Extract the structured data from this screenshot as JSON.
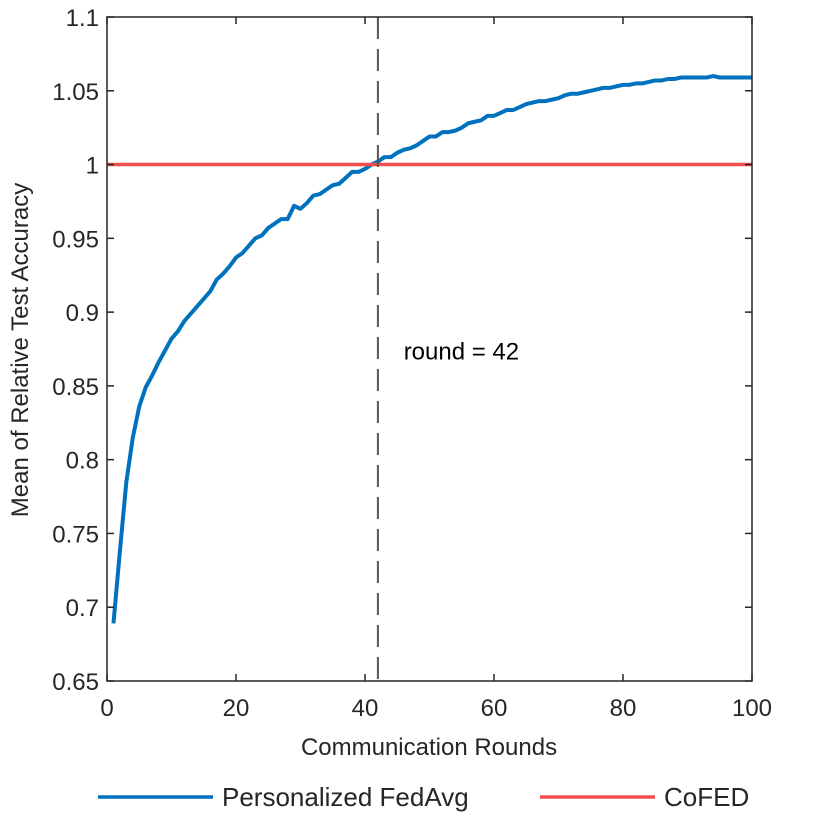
{
  "chart_data": {
    "type": "line",
    "xlabel": "Communication Rounds",
    "ylabel": "Mean of Relative Test Accuracy",
    "xlim": [
      0,
      100
    ],
    "ylim": [
      0.65,
      1.1
    ],
    "xticks": [
      0,
      20,
      40,
      60,
      80,
      100
    ],
    "yticks": [
      0.65,
      0.7,
      0.75,
      0.8,
      0.85,
      0.9,
      0.95,
      1,
      1.05,
      1.1
    ],
    "xtick_labels": [
      "0",
      "20",
      "40",
      "60",
      "80",
      "100"
    ],
    "ytick_labels": [
      "0.65",
      "0.7",
      "0.75",
      "0.8",
      "0.85",
      "0.9",
      "0.95",
      "1",
      "1.05",
      "1.1"
    ],
    "grid": false,
    "legend_position": "bottom",
    "series": [
      {
        "name": "Personalized FedAvg",
        "color": "#0072BD",
        "x": [
          1,
          2,
          3,
          4,
          5,
          6,
          7,
          8,
          9,
          10,
          11,
          12,
          13,
          14,
          15,
          16,
          17,
          18,
          19,
          20,
          21,
          22,
          23,
          24,
          25,
          26,
          27,
          28,
          29,
          30,
          31,
          32,
          33,
          34,
          35,
          36,
          37,
          38,
          39,
          40,
          41,
          42,
          43,
          44,
          45,
          46,
          47,
          48,
          49,
          50,
          51,
          52,
          53,
          54,
          55,
          56,
          57,
          58,
          59,
          60,
          61,
          62,
          63,
          64,
          65,
          66,
          67,
          68,
          69,
          70,
          71,
          72,
          73,
          74,
          75,
          76,
          77,
          78,
          79,
          80,
          81,
          82,
          83,
          84,
          85,
          86,
          87,
          88,
          89,
          90,
          91,
          92,
          93,
          94,
          95,
          96,
          97,
          98,
          99,
          100
        ],
        "y": [
          0.689,
          0.738,
          0.785,
          0.815,
          0.836,
          0.849,
          0.857,
          0.866,
          0.874,
          0.882,
          0.887,
          0.894,
          0.899,
          0.904,
          0.909,
          0.914,
          0.922,
          0.926,
          0.931,
          0.937,
          0.94,
          0.945,
          0.95,
          0.952,
          0.957,
          0.96,
          0.963,
          0.963,
          0.972,
          0.97,
          0.974,
          0.979,
          0.98,
          0.983,
          0.986,
          0.987,
          0.991,
          0.995,
          0.995,
          0.997,
          1.0,
          1.002,
          1.005,
          1.005,
          1.008,
          1.01,
          1.011,
          1.013,
          1.016,
          1.019,
          1.019,
          1.022,
          1.022,
          1.023,
          1.025,
          1.028,
          1.029,
          1.03,
          1.033,
          1.033,
          1.035,
          1.037,
          1.037,
          1.039,
          1.041,
          1.042,
          1.043,
          1.043,
          1.044,
          1.045,
          1.047,
          1.048,
          1.048,
          1.049,
          1.05,
          1.051,
          1.052,
          1.052,
          1.053,
          1.054,
          1.054,
          1.055,
          1.055,
          1.056,
          1.057,
          1.057,
          1.058,
          1.058,
          1.059,
          1.059,
          1.059,
          1.059,
          1.059,
          1.06,
          1.059,
          1.059,
          1.059,
          1.059,
          1.059,
          1.059
        ]
      },
      {
        "name": "CoFED",
        "color": "#EE4E4E",
        "x": [
          0,
          100
        ],
        "y": [
          1,
          1
        ]
      }
    ],
    "vline": {
      "x": 42,
      "color": "#555555"
    },
    "annotation": {
      "text": "round = 42",
      "x": 46,
      "y": 0.868
    }
  }
}
